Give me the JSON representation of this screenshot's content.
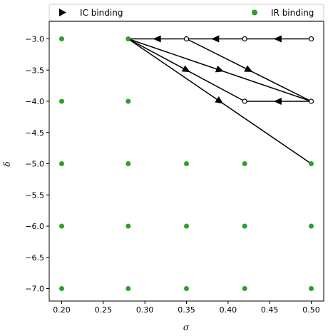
{
  "chart_data": {
    "type": "scatter",
    "xlabel": "σ",
    "ylabel": "δ",
    "xlim": [
      0.185,
      0.515
    ],
    "ylim": [
      -7.2,
      -2.72
    ],
    "xticks": [
      0.2,
      0.25,
      0.3,
      0.35,
      0.4,
      0.45,
      0.5
    ],
    "xtick_labels": [
      "0.20",
      "0.25",
      "0.30",
      "0.35",
      "0.40",
      "0.45",
      "0.50"
    ],
    "yticks": [
      -3.0,
      -3.5,
      -4.0,
      -4.5,
      -5.0,
      -5.5,
      -6.0,
      -6.5,
      -7.0
    ],
    "ytick_labels": [
      "−3.0",
      "−3.5",
      "−4.0",
      "−4.5",
      "−5.0",
      "−5.5",
      "−6.0",
      "−6.5",
      "−7.0"
    ],
    "legend": {
      "placement": "top (above axes)",
      "entries": [
        {
          "label": "IC binding",
          "marker": "triangle-right",
          "color": "#000000"
        },
        {
          "label": "IR binding",
          "marker": "circle",
          "color": "#2ca02c"
        }
      ]
    },
    "ir_binding_points": [
      [
        0.2,
        -3.0
      ],
      [
        0.28,
        -3.0
      ],
      [
        0.2,
        -4.0
      ],
      [
        0.28,
        -4.0
      ],
      [
        0.2,
        -5.0
      ],
      [
        0.28,
        -5.0
      ],
      [
        0.35,
        -5.0
      ],
      [
        0.42,
        -5.0
      ],
      [
        0.5,
        -5.0
      ],
      [
        0.2,
        -6.0
      ],
      [
        0.28,
        -6.0
      ],
      [
        0.35,
        -6.0
      ],
      [
        0.42,
        -6.0
      ],
      [
        0.5,
        -6.0
      ],
      [
        0.2,
        -7.0
      ],
      [
        0.28,
        -7.0
      ],
      [
        0.35,
        -7.0
      ],
      [
        0.42,
        -7.0
      ],
      [
        0.5,
        -7.0
      ]
    ],
    "ic_binding_points": [
      [
        0.35,
        -3.0
      ],
      [
        0.42,
        -3.0
      ],
      [
        0.5,
        -3.0
      ],
      [
        0.42,
        -4.0
      ],
      [
        0.5,
        -4.0
      ]
    ],
    "arrows": [
      {
        "from": [
          0.35,
          -3.0
        ],
        "to": [
          0.28,
          -3.0
        ]
      },
      {
        "from": [
          0.42,
          -3.0
        ],
        "to": [
          0.35,
          -3.0
        ]
      },
      {
        "from": [
          0.5,
          -3.0
        ],
        "to": [
          0.42,
          -3.0
        ]
      },
      {
        "from": [
          0.5,
          -4.0
        ],
        "to": [
          0.42,
          -4.0
        ]
      },
      {
        "from": [
          0.28,
          -3.0
        ],
        "to": [
          0.42,
          -4.0
        ]
      },
      {
        "from": [
          0.28,
          -3.0
        ],
        "to": [
          0.5,
          -4.0
        ]
      },
      {
        "from": [
          0.35,
          -3.0
        ],
        "to": [
          0.5,
          -4.0
        ]
      },
      {
        "from": [
          0.28,
          -3.0
        ],
        "to": [
          0.5,
          -5.0
        ]
      }
    ],
    "colors": {
      "ir": "#2ca02c",
      "ic_marker_face": "#ffffff",
      "line": "#000000"
    }
  }
}
